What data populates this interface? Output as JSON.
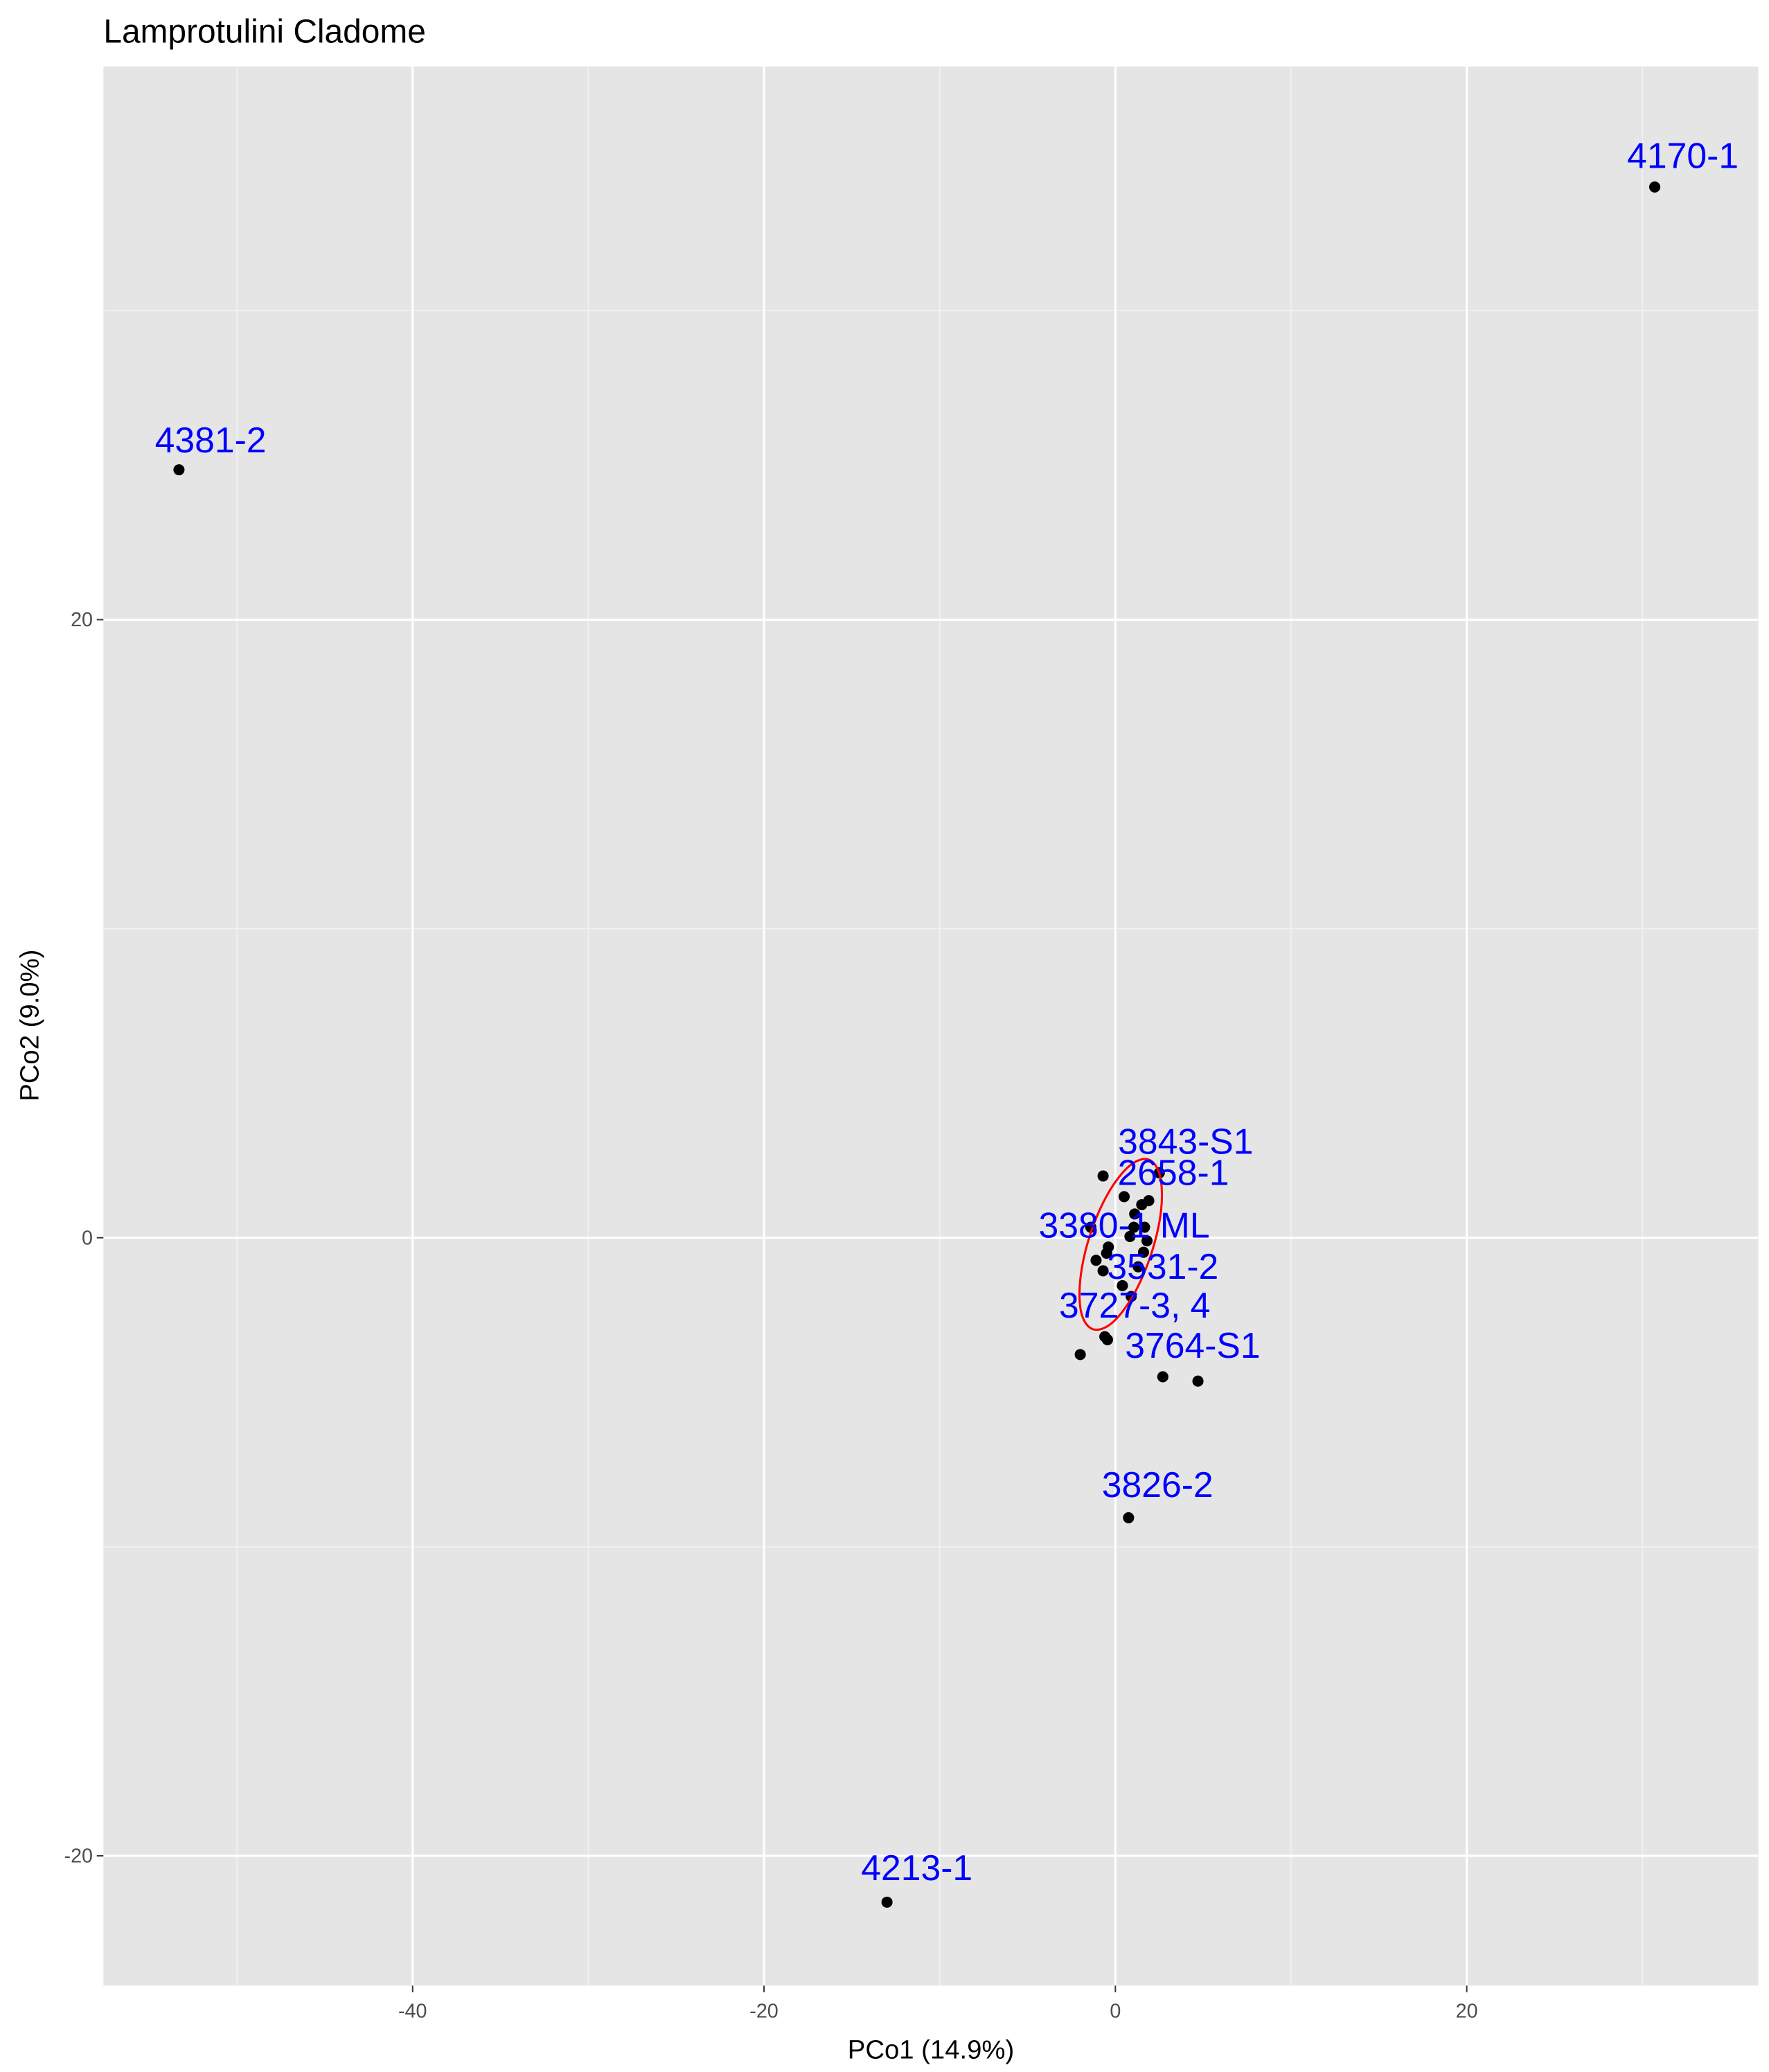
{
  "chart_data": {
    "type": "scatter",
    "title": "Lamprotulini Cladome",
    "x_label": "PCo1 (14.9%)",
    "y_label": "PCo2 (9.0%)",
    "xlim": [
      -57.6,
      36.6
    ],
    "ylim": [
      -24.2,
      37.9
    ],
    "xticks": [
      -40,
      -20,
      0,
      20
    ],
    "yticks": [
      -20,
      0,
      20
    ],
    "grid": true,
    "minor_grid": true,
    "panel_color": "#e5e5e5",
    "point_color": "#000000",
    "label_color": "#0000ff",
    "x": [
      30.7,
      -53.3,
      -13.0,
      0.75,
      2.7,
      4.7,
      -2.0,
      -0.6,
      -0.45,
      0.4,
      0.9,
      -0.7,
      2.5,
      0.5,
      1.9,
      1.5,
      1.1,
      1.05,
      1.66,
      0.83,
      1.8,
      -0.4,
      -0.5,
      1.6,
      1.3,
      -1.1,
      -0.7,
      -1.4
    ],
    "y": [
      34.0,
      24.85,
      -21.5,
      -9.06,
      -4.5,
      -4.64,
      -3.78,
      -3.2,
      -3.3,
      -1.55,
      -1.9,
      2.0,
      2.1,
      1.33,
      1.2,
      1.07,
      0.77,
      0.34,
      0.34,
      0.04,
      -0.1,
      -0.3,
      -0.5,
      -0.47,
      -0.94,
      -0.73,
      -1.07,
      0.34
    ],
    "annotations": [
      {
        "text": "4170-1",
        "x": 32.3,
        "y": 35.0
      },
      {
        "text": "4381-2",
        "x": -51.5,
        "y": 25.8
      },
      {
        "text": "4213-1",
        "x": -11.3,
        "y": -20.4
      },
      {
        "text": "3826-2",
        "x": 2.4,
        "y": -8.0
      },
      {
        "text": "3764-S1",
        "x": 4.4,
        "y": -3.5
      },
      {
        "text": "3727-3, 4",
        "x": 1.1,
        "y": -2.2
      },
      {
        "text": "3531-2",
        "x": 2.7,
        "y": -0.94
      },
      {
        "text": "3380-1 ML",
        "x": 0.5,
        "y": 0.39
      },
      {
        "text": "2658-1",
        "x": 3.3,
        "y": 2.1
      },
      {
        "text": "3843-S1",
        "x": 4.0,
        "y": 3.1
      }
    ],
    "ellipse": {
      "color": "#ff0000",
      "x": [
        1.89,
        2.54,
        2.6,
        2.03,
        1.01,
        -0.2,
        -1.28,
        -1.94,
        -1.99,
        -1.43,
        -0.41,
        0.81
      ],
      "y": [
        2.53,
        2.0,
        0.88,
        -0.54,
        -1.87,
        -2.76,
        -2.96,
        -2.43,
        -1.31,
        0.11,
        1.44,
        2.33
      ]
    }
  }
}
